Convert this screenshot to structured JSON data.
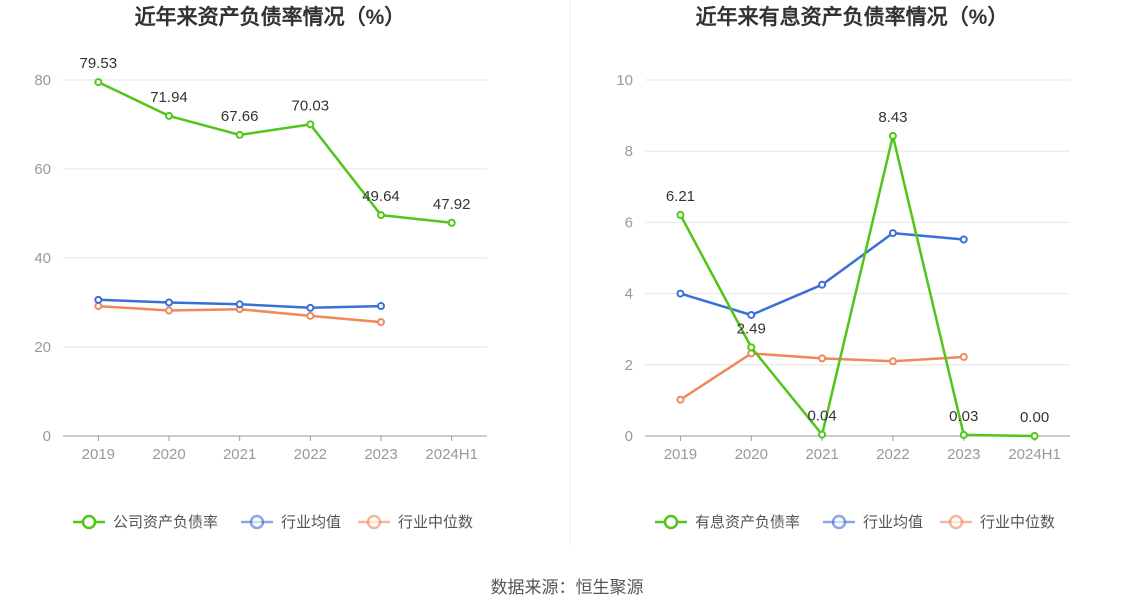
{
  "source_label": "数据来源：恒生聚源",
  "chart_data": [
    {
      "type": "line",
      "title": "近年来资产负债率情况（%）",
      "categories": [
        "2019",
        "2020",
        "2021",
        "2022",
        "2023",
        "2024H1"
      ],
      "ylim": [
        0,
        80
      ],
      "yticks": [
        0,
        20,
        40,
        60,
        80
      ],
      "grid": true,
      "legend_position": "bottom",
      "series": [
        {
          "name": "公司资产负债率",
          "color": "#52c41a",
          "values": [
            79.53,
            71.94,
            67.66,
            70.03,
            49.64,
            47.92
          ],
          "labels": [
            "79.53",
            "71.94",
            "67.66",
            "70.03",
            "49.64",
            "47.92"
          ]
        },
        {
          "name": "行业均值",
          "color": "#3b6fd8",
          "values": [
            30.6,
            30.0,
            29.6,
            28.8,
            29.2,
            null
          ]
        },
        {
          "name": "行业中位数",
          "color": "#f0885a",
          "values": [
            29.2,
            28.2,
            28.5,
            27.0,
            25.6,
            null
          ]
        }
      ]
    },
    {
      "type": "line",
      "title": "近年来有息资产负债率情况（%）",
      "categories": [
        "2019",
        "2020",
        "2021",
        "2022",
        "2023",
        "2024H1"
      ],
      "ylim": [
        0,
        10
      ],
      "yticks": [
        0,
        2,
        4,
        6,
        8,
        10
      ],
      "grid": true,
      "legend_position": "bottom",
      "series": [
        {
          "name": "有息资产负债率",
          "color": "#52c41a",
          "values": [
            6.21,
            2.49,
            0.04,
            8.43,
            0.03,
            0.0
          ],
          "labels": [
            "6.21",
            "2.49",
            "0.04",
            "8.43",
            "0.03",
            "0.00"
          ]
        },
        {
          "name": "行业均值",
          "color": "#3b6fd8",
          "values": [
            4.0,
            3.4,
            4.25,
            5.7,
            5.52,
            null
          ]
        },
        {
          "name": "行业中位数",
          "color": "#f0885a",
          "values": [
            1.02,
            2.32,
            2.18,
            2.1,
            2.22,
            null
          ]
        }
      ]
    }
  ]
}
